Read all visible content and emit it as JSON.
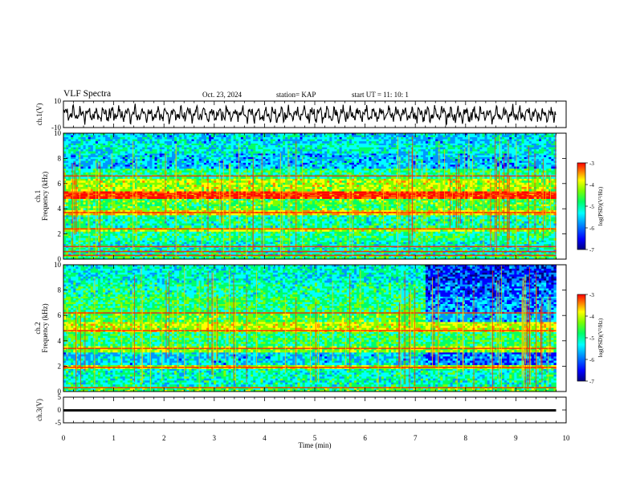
{
  "header": {
    "title": "VLF Spectra",
    "date": "Oct. 23, 2024",
    "station": "station= KAP",
    "start": "start  UT =   11: 10: 1"
  },
  "colors": {
    "spectrogram_scale": [
      "#000080",
      "#0000ff",
      "#0096ff",
      "#00ffff",
      "#00ff66",
      "#7cff00",
      "#ffff00",
      "#ff8000",
      "#ff0000",
      "#ff0000"
    ],
    "trace": "#000000",
    "axes": "#000000"
  },
  "chart_data": [
    {
      "type": "line",
      "name": "ch1-waveform",
      "ylabel": "ch.1(V)",
      "ylim": [
        -10,
        10
      ],
      "yticks": [
        "10",
        "-10"
      ],
      "xlim": [
        0,
        10
      ],
      "description_values": "oscillating waveform roughly between -6 and 6 V across 0 to 9.8 min"
    },
    {
      "type": "heatmap",
      "name": "ch1-spectrogram",
      "ylabel": "ch.1\nFrequency (kHz)",
      "ylim": [
        0,
        10
      ],
      "yticks": [
        "0",
        "2",
        "4",
        "6",
        "8",
        "10"
      ],
      "xlim": [
        0,
        10
      ],
      "data_end_min": 9.8,
      "colorbar": {
        "label": "log(PSD)(V²/Hz)",
        "range": [
          -7,
          -3
        ],
        "ticks": [
          "-3",
          "-4",
          "-5",
          "-6",
          "-7"
        ]
      },
      "bands_khz": [
        {
          "lo": 0.0,
          "hi": 0.3,
          "level": 0.45
        },
        {
          "lo": 0.3,
          "hi": 1.5,
          "level": 0.38
        },
        {
          "lo": 1.5,
          "hi": 2.2,
          "level": 0.42
        },
        {
          "lo": 2.2,
          "hi": 2.5,
          "level": 0.6
        },
        {
          "lo": 2.5,
          "hi": 3.5,
          "level": 0.4
        },
        {
          "lo": 3.5,
          "hi": 3.9,
          "level": 0.68
        },
        {
          "lo": 3.9,
          "hi": 4.8,
          "level": 0.5
        },
        {
          "lo": 4.8,
          "hi": 5.4,
          "level": 0.85
        },
        {
          "lo": 5.4,
          "hi": 6.4,
          "level": 0.6
        },
        {
          "lo": 6.4,
          "hi": 7.2,
          "level": 0.42
        },
        {
          "lo": 7.2,
          "hi": 8.4,
          "level": 0.28
        },
        {
          "lo": 8.4,
          "hi": 9.2,
          "level": 0.35
        },
        {
          "lo": 9.2,
          "hi": 10.0,
          "level": 0.3
        }
      ],
      "lines_khz": [
        0.3,
        0.6,
        1.0,
        2.4,
        3.7,
        5.0,
        5.2,
        6.6
      ]
    },
    {
      "type": "heatmap",
      "name": "ch2-spectrogram",
      "ylabel": "ch.2\nFrequency (kHz)",
      "ylim": [
        0,
        10
      ],
      "yticks": [
        "0",
        "2",
        "4",
        "6",
        "8",
        "10"
      ],
      "xlim": [
        0,
        10
      ],
      "data_end_min": 9.8,
      "colorbar": {
        "label": "log(PSD)(V²/Hz)",
        "range": [
          -7,
          -3
        ],
        "ticks": [
          "-3",
          "-4",
          "-5",
          "-6",
          "-7"
        ]
      },
      "bands_khz": [
        {
          "lo": 0.0,
          "hi": 0.4,
          "level": 0.5
        },
        {
          "lo": 0.4,
          "hi": 1.8,
          "level": 0.38
        },
        {
          "lo": 1.8,
          "hi": 2.1,
          "level": 0.62
        },
        {
          "lo": 2.1,
          "hi": 3.1,
          "level": 0.3
        },
        {
          "lo": 3.1,
          "hi": 3.6,
          "level": 0.55
        },
        {
          "lo": 3.6,
          "hi": 4.7,
          "level": 0.45
        },
        {
          "lo": 4.7,
          "hi": 5.5,
          "level": 0.62
        },
        {
          "lo": 5.5,
          "hi": 6.3,
          "level": 0.5
        },
        {
          "lo": 6.3,
          "hi": 7.5,
          "level": 0.45
        },
        {
          "lo": 7.5,
          "hi": 8.6,
          "level": 0.4
        },
        {
          "lo": 8.6,
          "hi": 10.0,
          "level": 0.36
        }
      ],
      "lines_khz": [
        0.3,
        1.9,
        3.4,
        4.8,
        6.2
      ]
    },
    {
      "type": "line",
      "name": "ch3-trace",
      "ylabel": "ch.3(V)",
      "ylim": [
        -5,
        5
      ],
      "yticks": [
        "5",
        "0",
        "-5"
      ],
      "xlim": [
        0,
        10
      ],
      "level_v": [
        -0.6,
        0.3
      ]
    }
  ],
  "xaxis": {
    "label": "Time (min)",
    "ticks": [
      "0",
      "1",
      "2",
      "3",
      "4",
      "5",
      "6",
      "7",
      "8",
      "9",
      "10"
    ]
  }
}
